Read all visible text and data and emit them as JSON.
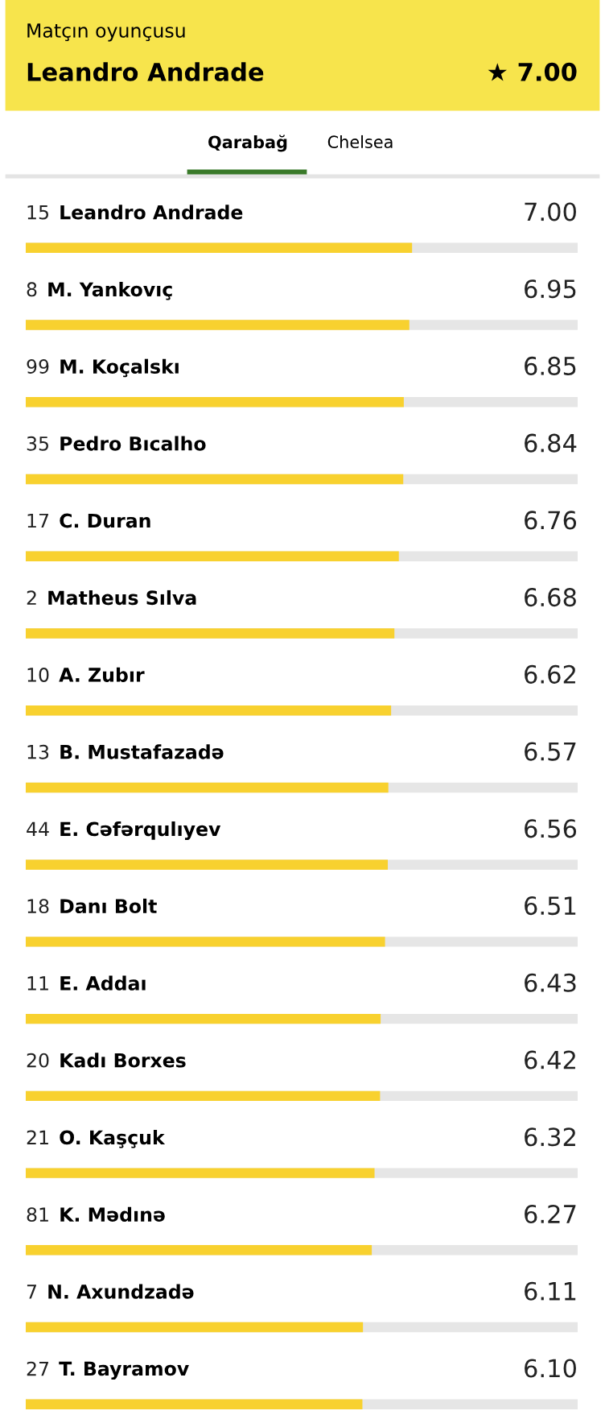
{
  "chart_data": {
    "type": "bar",
    "orientation": "horizontal",
    "title": "Matçın oyunçusu",
    "subtitle": "Leandro Andrade",
    "annotations": [
      "★ 7.00",
      "Qarabağ",
      "Chelsea"
    ],
    "categories": [
      "15 Leandro Andrade",
      "8 M. Yankovıç",
      "99 M. Koçalskı",
      "35 Pedro Bıcalho",
      "17 C. Duran",
      "2 Matheus Sılva",
      "10 A. Zubır",
      "13 B. Mustafazadə",
      "44 E. Cəfərqulıyev",
      "18 Danı Bolt",
      "11 E. Addaı",
      "20 Kadı Borxes",
      "21 O. Kaşçuk",
      "81 K. Mədınə",
      "7 N. Axundzadə",
      "27 T. Bayramov"
    ],
    "values": [
      7.0,
      6.95,
      6.85,
      6.84,
      6.76,
      6.68,
      6.62,
      6.57,
      6.56,
      6.51,
      6.43,
      6.42,
      6.32,
      6.27,
      6.11,
      6.1
    ],
    "value_labels": [
      "7.00",
      "6.95",
      "6.85",
      "6.84",
      "6.76",
      "6.68",
      "6.62",
      "6.57",
      "6.56",
      "6.51",
      "6.43",
      "6.42",
      "6.32",
      "6.27",
      "6.11",
      "6.10"
    ],
    "color": "#f8d12f",
    "xlim": [
      0,
      10
    ]
  }
}
